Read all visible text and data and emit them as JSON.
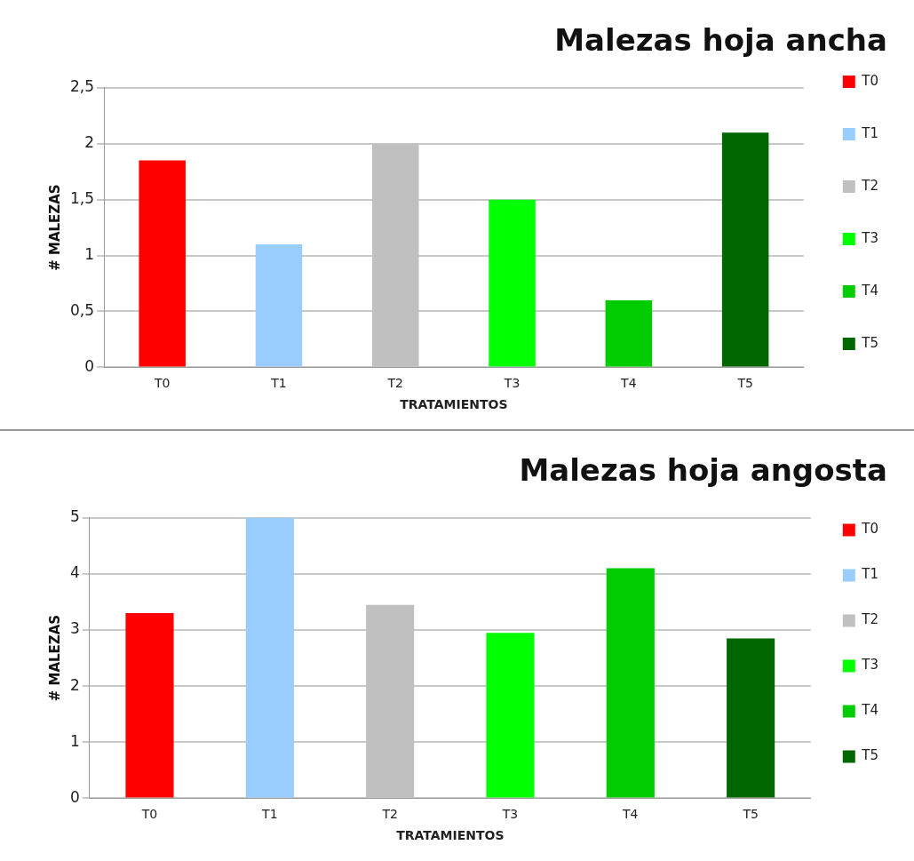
{
  "chart_data": [
    {
      "type": "bar",
      "title": "Malezas hoja ancha",
      "xlabel": "TRATAMIENTOS",
      "ylabel": "# MALEZAS",
      "categories": [
        "T0",
        "T1",
        "T2",
        "T3",
        "T4",
        "T5"
      ],
      "series": [
        {
          "name": "T0",
          "color": "#ff0000",
          "values": [
            1.85,
            null,
            null,
            null,
            null,
            null
          ]
        },
        {
          "name": "T1",
          "color": "#99ccff",
          "values": [
            null,
            1.1,
            null,
            null,
            null,
            null
          ]
        },
        {
          "name": "T2",
          "color": "#c0c0c0",
          "values": [
            null,
            null,
            2.0,
            null,
            null,
            null
          ]
        },
        {
          "name": "T3",
          "color": "#00ff00",
          "values": [
            null,
            null,
            null,
            1.5,
            null,
            null
          ]
        },
        {
          "name": "T4",
          "color": "#00cc00",
          "values": [
            null,
            null,
            null,
            null,
            0.6,
            null
          ]
        },
        {
          "name": "T5",
          "color": "#006600",
          "values": [
            null,
            null,
            null,
            null,
            null,
            2.1
          ]
        }
      ],
      "ylim": [
        0,
        2.5
      ],
      "yticks": [
        {
          "value": 0,
          "label": "0"
        },
        {
          "value": 0.5,
          "label": "0,5"
        },
        {
          "value": 1,
          "label": "1"
        },
        {
          "value": 1.5,
          "label": "1,5"
        },
        {
          "value": 2,
          "label": "2"
        },
        {
          "value": 2.5,
          "label": "2,5"
        }
      ],
      "grid": "y",
      "legend": "right"
    },
    {
      "type": "bar",
      "title": "Malezas hoja angosta",
      "xlabel": "TRATAMIENTOS",
      "ylabel": "# MALEZAS",
      "categories": [
        "T0",
        "T1",
        "T2",
        "T3",
        "T4",
        "T5"
      ],
      "series": [
        {
          "name": "T0",
          "color": "#ff0000",
          "values": [
            3.3,
            null,
            null,
            null,
            null,
            null
          ]
        },
        {
          "name": "T1",
          "color": "#99ccff",
          "values": [
            null,
            5.0,
            null,
            null,
            null,
            null
          ]
        },
        {
          "name": "T2",
          "color": "#c0c0c0",
          "values": [
            null,
            null,
            3.45,
            null,
            null,
            null
          ]
        },
        {
          "name": "T3",
          "color": "#00ff00",
          "values": [
            null,
            null,
            null,
            2.95,
            null,
            null
          ]
        },
        {
          "name": "T4",
          "color": "#00cc00",
          "values": [
            null,
            null,
            null,
            null,
            4.1,
            null
          ]
        },
        {
          "name": "T5",
          "color": "#006600",
          "values": [
            null,
            null,
            null,
            null,
            null,
            2.85
          ]
        }
      ],
      "ylim": [
        0,
        5
      ],
      "yticks": [
        0,
        1,
        2,
        3,
        4,
        5
      ],
      "grid": "y",
      "legend": "right"
    }
  ]
}
